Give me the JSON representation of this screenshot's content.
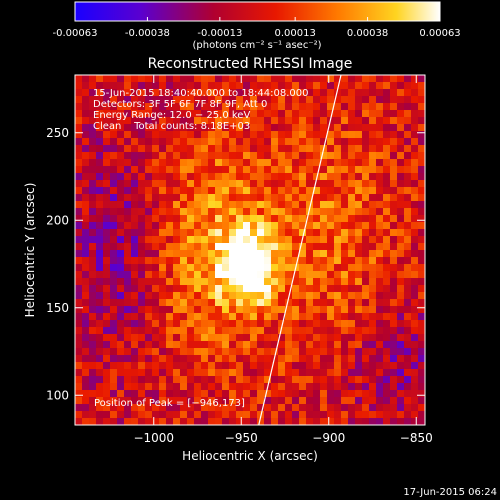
{
  "colorbar": {
    "ticks": [
      "-0.00063",
      "-0.00038",
      "-0.00013",
      "0.00013",
      "0.00038",
      "0.00063"
    ],
    "tick_values": [
      -0.00063,
      -0.00038,
      -0.00013,
      0.00013,
      0.00038,
      0.00063
    ],
    "unit_label": "(photons cm⁻² s⁻¹ asec⁻²)"
  },
  "chart_data": {
    "type": "heatmap",
    "title": "Reconstructed RHESSI Image",
    "xlabel": "Heliocentric X (arcsec)",
    "ylabel": "Heliocentric Y (arcsec)",
    "xlim": [
      -1045,
      -845
    ],
    "ylim": [
      83,
      283
    ],
    "x_ticks": [
      -1000,
      -950,
      -900,
      -850
    ],
    "y_ticks": [
      100,
      150,
      200,
      250
    ],
    "x_tick_labels": [
      "−1000",
      "−950",
      "−900",
      "−850"
    ],
    "y_tick_labels": [
      "100",
      "150",
      "200",
      "250"
    ],
    "vmin": -0.00063,
    "vmax": 0.00063,
    "colormap": "blue-purple-red-yellow-white",
    "peak": {
      "x": -946,
      "y": 173
    },
    "limb_line": [
      {
        "x": -940,
        "y": 83
      },
      {
        "x": -893,
        "y": 283
      }
    ],
    "info_lines": [
      "15-Jun-2015 18:40:40.000 to 18:44:08.000",
      "Detectors: 3F 5F 6F 7F 8F 9F, Att 0",
      "Energy Range: 12.0 − 25.0 keV",
      "Clean    Total counts: 8.18E+03"
    ],
    "peak_label": "Position of Peak = [−946,173]"
  },
  "footer": {
    "date": "17-Jun-2015 06:24"
  }
}
